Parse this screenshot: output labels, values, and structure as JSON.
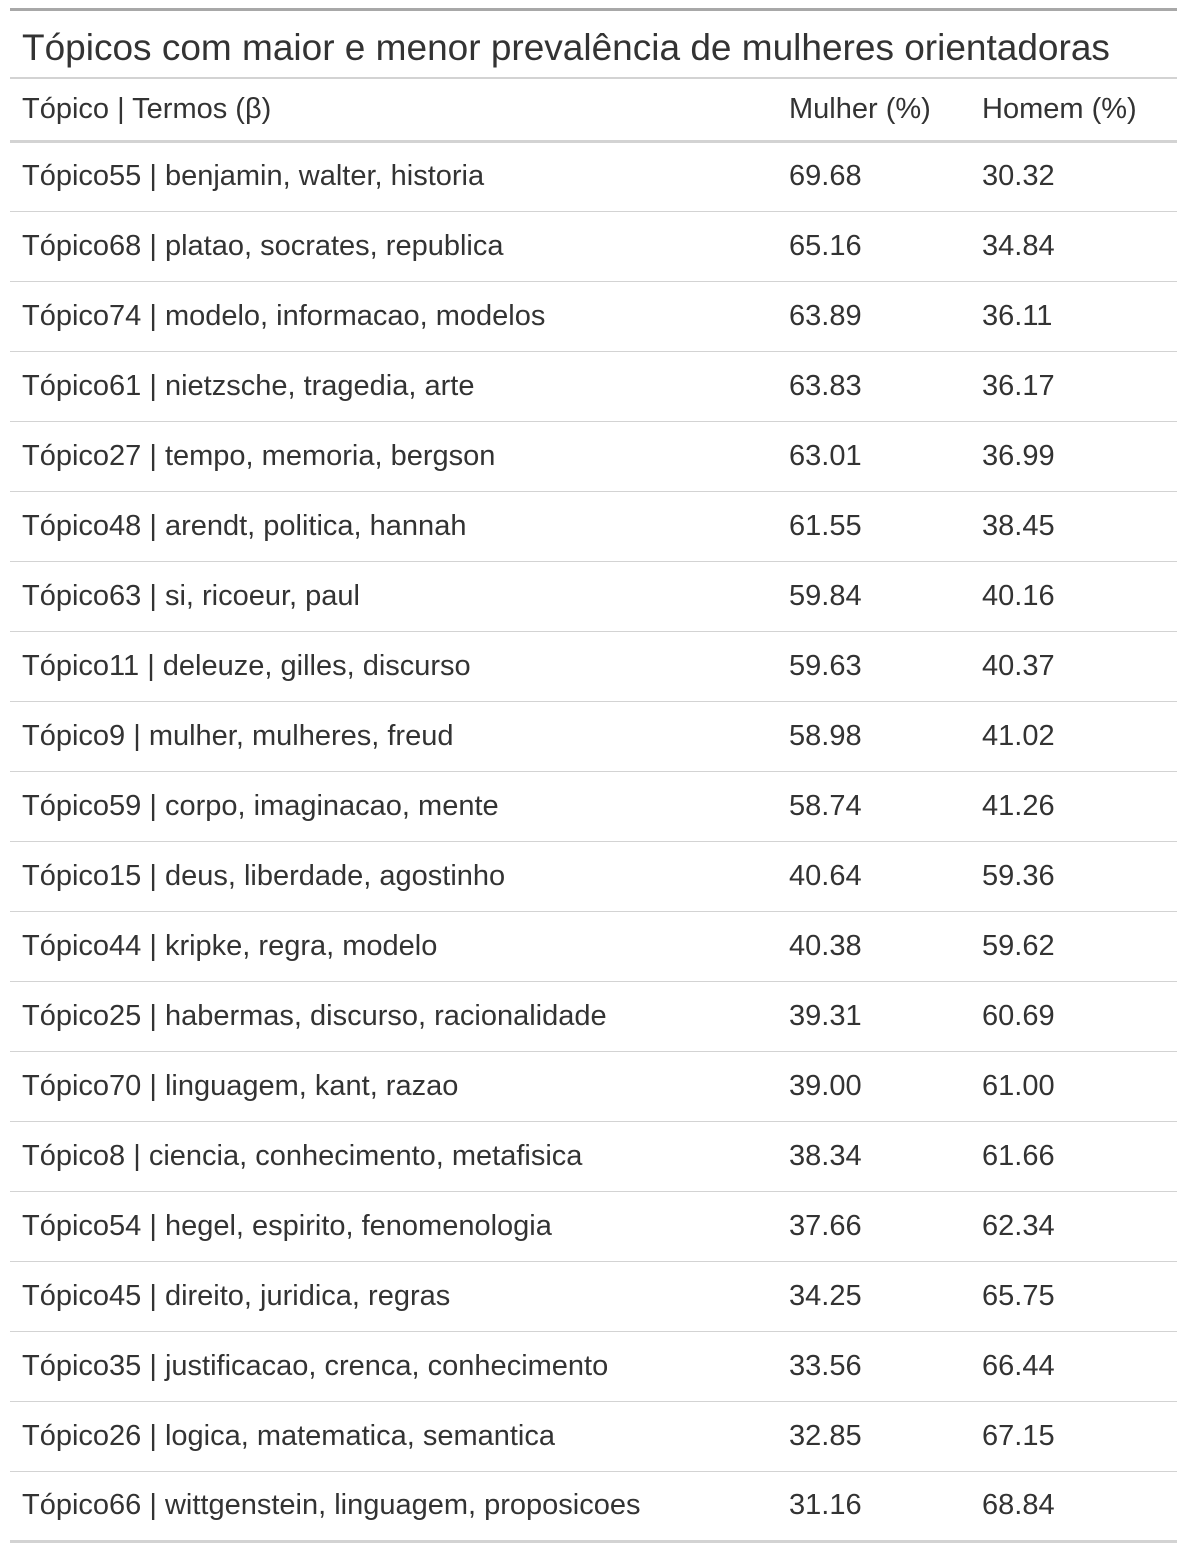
{
  "chart_data": {
    "type": "table",
    "title": "Tópicos com maior e menor prevalência de mulheres orientadoras",
    "columns": [
      "Tópico | Termos (β)",
      "Mulher (%)",
      "Homem (%)"
    ],
    "rows": [
      [
        "Tópico55 | benjamin, walter, historia",
        "69.68",
        "30.32"
      ],
      [
        "Tópico68 | platao, socrates, republica",
        "65.16",
        "34.84"
      ],
      [
        "Tópico74 | modelo, informacao, modelos",
        "63.89",
        "36.11"
      ],
      [
        "Tópico61 | nietzsche, tragedia, arte",
        "63.83",
        "36.17"
      ],
      [
        "Tópico27 | tempo, memoria, bergson",
        "63.01",
        "36.99"
      ],
      [
        "Tópico48 | arendt, politica, hannah",
        "61.55",
        "38.45"
      ],
      [
        "Tópico63 | si, ricoeur, paul",
        "59.84",
        "40.16"
      ],
      [
        "Tópico11 | deleuze, gilles, discurso",
        "59.63",
        "40.37"
      ],
      [
        "Tópico9 | mulher, mulheres, freud",
        "58.98",
        "41.02"
      ],
      [
        "Tópico59 | corpo, imaginacao, mente",
        "58.74",
        "41.26"
      ],
      [
        "Tópico15 | deus, liberdade, agostinho",
        "40.64",
        "59.36"
      ],
      [
        "Tópico44 | kripke, regra, modelo",
        "40.38",
        "59.62"
      ],
      [
        "Tópico25 | habermas, discurso, racionalidade",
        "39.31",
        "60.69"
      ],
      [
        "Tópico70 | linguagem, kant, razao",
        "39.00",
        "61.00"
      ],
      [
        "Tópico8 | ciencia, conhecimento, metafisica",
        "38.34",
        "61.66"
      ],
      [
        "Tópico54 | hegel, espirito, fenomenologia",
        "37.66",
        "62.34"
      ],
      [
        "Tópico45 | direito, juridica, regras",
        "34.25",
        "65.75"
      ],
      [
        "Tópico35 | justificacao, crenca, conhecimento",
        "33.56",
        "66.44"
      ],
      [
        "Tópico26 | logica, matematica, semantica",
        "32.85",
        "67.15"
      ],
      [
        "Tópico66 | wittgenstein, linguagem, proposicoes",
        "31.16",
        "68.84"
      ]
    ]
  }
}
